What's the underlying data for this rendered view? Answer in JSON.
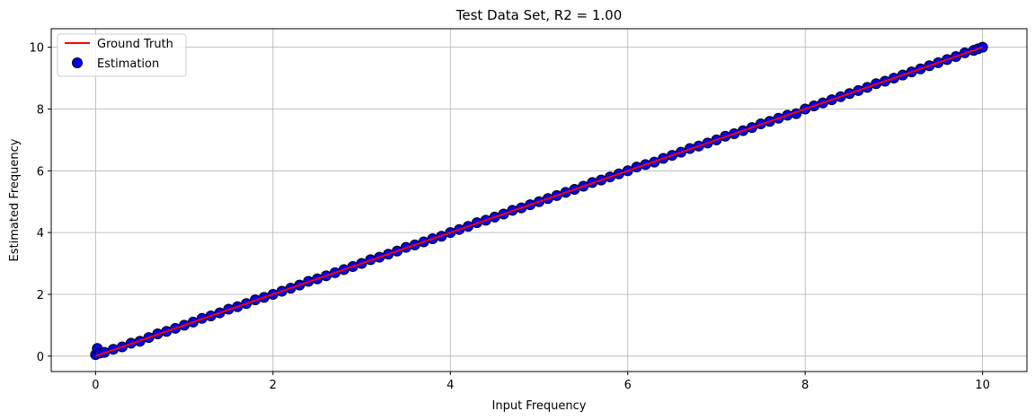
{
  "chart_data": {
    "type": "scatter",
    "title": "Test Data Set, R2 = 1.00",
    "xlabel": "Input Frequency",
    "ylabel": "Estimated Frequency",
    "xlim": [
      -0.5,
      10.5
    ],
    "ylim": [
      -0.5,
      10.6
    ],
    "xticks": [
      0,
      2,
      4,
      6,
      8,
      10
    ],
    "yticks": [
      0,
      2,
      4,
      6,
      8,
      10
    ],
    "grid": true,
    "legend_position": "top-left",
    "series": [
      {
        "name": "Ground Truth",
        "kind": "line",
        "color": "#ff0000",
        "x": [
          0,
          10
        ],
        "y": [
          0,
          10
        ]
      },
      {
        "name": "Estimation",
        "kind": "scatter",
        "color": "#0000ff",
        "edgecolor": "#000000",
        "x": [
          0,
          0.02,
          0.05,
          0.1,
          0.2,
          0.3,
          0.4,
          0.5,
          0.6,
          0.7,
          0.8,
          0.9,
          1.0,
          1.1,
          1.2,
          1.3,
          1.4,
          1.5,
          1.6,
          1.7,
          1.8,
          1.9,
          2.0,
          2.1,
          2.2,
          2.3,
          2.4,
          2.5,
          2.6,
          2.7,
          2.8,
          2.9,
          3.0,
          3.1,
          3.2,
          3.3,
          3.4,
          3.5,
          3.6,
          3.7,
          3.8,
          3.9,
          4.0,
          4.1,
          4.2,
          4.3,
          4.4,
          4.5,
          4.6,
          4.7,
          4.8,
          4.9,
          5.0,
          5.1,
          5.2,
          5.3,
          5.4,
          5.5,
          5.6,
          5.7,
          5.8,
          5.9,
          6.0,
          6.1,
          6.2,
          6.3,
          6.4,
          6.5,
          6.6,
          6.7,
          6.8,
          6.9,
          7.0,
          7.1,
          7.2,
          7.3,
          7.4,
          7.5,
          7.6,
          7.7,
          7.8,
          7.9,
          8.0,
          8.1,
          8.2,
          8.3,
          8.4,
          8.5,
          8.6,
          8.7,
          8.8,
          8.9,
          9.0,
          9.1,
          9.2,
          9.3,
          9.4,
          9.5,
          9.6,
          9.7,
          9.8,
          9.9,
          9.95,
          10.0
        ],
        "y": [
          0.05,
          0.25,
          0.1,
          0.12,
          0.22,
          0.3,
          0.42,
          0.48,
          0.6,
          0.72,
          0.8,
          0.9,
          1.0,
          1.1,
          1.22,
          1.3,
          1.4,
          1.52,
          1.6,
          1.7,
          1.82,
          1.9,
          2.0,
          2.1,
          2.2,
          2.3,
          2.42,
          2.5,
          2.6,
          2.7,
          2.8,
          2.9,
          3.0,
          3.12,
          3.2,
          3.3,
          3.4,
          3.52,
          3.6,
          3.7,
          3.8,
          3.88,
          4.0,
          4.1,
          4.2,
          4.32,
          4.4,
          4.5,
          4.6,
          4.72,
          4.8,
          4.9,
          5.0,
          5.1,
          5.2,
          5.3,
          5.4,
          5.5,
          5.62,
          5.7,
          5.8,
          5.9,
          6.0,
          6.12,
          6.2,
          6.28,
          6.4,
          6.5,
          6.6,
          6.72,
          6.8,
          6.9,
          7.0,
          7.12,
          7.2,
          7.3,
          7.4,
          7.52,
          7.6,
          7.7,
          7.8,
          7.85,
          8.0,
          8.1,
          8.2,
          8.3,
          8.4,
          8.5,
          8.6,
          8.7,
          8.82,
          8.9,
          9.0,
          9.1,
          9.2,
          9.3,
          9.4,
          9.5,
          9.6,
          9.7,
          9.82,
          9.9,
          9.95,
          10.0
        ]
      }
    ]
  }
}
